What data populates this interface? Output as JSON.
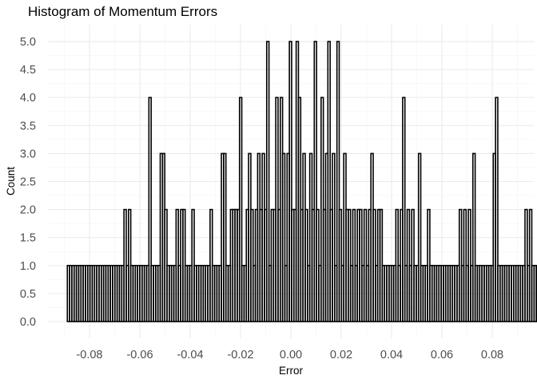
{
  "chart_data": {
    "type": "bar",
    "title": "Histogram of Momentum Errors",
    "xlabel": "Error",
    "ylabel": "Count",
    "xlim": [
      -0.0965,
      0.0965
    ],
    "ylim": [
      -0.3,
      5.3
    ],
    "x_ticks": [
      -0.08,
      -0.06,
      -0.04,
      -0.02,
      0.0,
      0.02,
      0.04,
      0.06,
      0.08
    ],
    "x_tick_labels": [
      "-0.08",
      "-0.06",
      "-0.04",
      "-0.02",
      "0.00",
      "0.02",
      "0.04",
      "0.06",
      "0.08"
    ],
    "y_ticks": [
      0,
      0.5,
      1,
      1.5,
      2,
      2.5,
      3,
      3.5,
      4,
      4.5,
      5
    ],
    "y_tick_labels": [
      "0.0",
      "0.5",
      "1.0",
      "1.5",
      "2.0",
      "2.5",
      "3.0",
      "3.5",
      "4.0",
      "4.5",
      "5.0"
    ],
    "grid": true,
    "bin_start": -0.0888,
    "bin_width": 0.0009,
    "counts": [
      1,
      1,
      1,
      1,
      1,
      1,
      1,
      1,
      1,
      1,
      1,
      1,
      1,
      1,
      1,
      1,
      1,
      1,
      1,
      1,
      1,
      1,
      1,
      1,
      1,
      2,
      1,
      2,
      1,
      1,
      1,
      1,
      1,
      1,
      1,
      1,
      4,
      1,
      1,
      1,
      1,
      3,
      3,
      2,
      1,
      1,
      1,
      1,
      2,
      1,
      2,
      2,
      1,
      1,
      1,
      2,
      1,
      1,
      1,
      1,
      1,
      1,
      1,
      2,
      1,
      1,
      1,
      1,
      3,
      3,
      1,
      1,
      2,
      2,
      2,
      2,
      4,
      1,
      1,
      2,
      3,
      2,
      1,
      2,
      3,
      2,
      3,
      2,
      5,
      1,
      2,
      2,
      4,
      2,
      4,
      3,
      1,
      3,
      5,
      2,
      2,
      5,
      4,
      2,
      3,
      2,
      1,
      3,
      2,
      5,
      2,
      1,
      4,
      2,
      3,
      5,
      2,
      3,
      1,
      5,
      2,
      1,
      3,
      2,
      2,
      1,
      2,
      1,
      2,
      2,
      1,
      2,
      1,
      2,
      3,
      2,
      1,
      2,
      2,
      1,
      1,
      1,
      1,
      1,
      1,
      2,
      1,
      2,
      4,
      1,
      2,
      1,
      2,
      1,
      1,
      3,
      1,
      1,
      1,
      2,
      1,
      1,
      1,
      1,
      1,
      1,
      1,
      1,
      1,
      1,
      1,
      1,
      1,
      2,
      1,
      2,
      1,
      2,
      1,
      3,
      1,
      1,
      1,
      1,
      1,
      1,
      1,
      1,
      3,
      4,
      1,
      1,
      1,
      1,
      1,
      1,
      1,
      1,
      1,
      1,
      1,
      1,
      2,
      1,
      2,
      1,
      1,
      1,
      1,
      1,
      1,
      1,
      1,
      1,
      1,
      1,
      1,
      1,
      1,
      1,
      1,
      1,
      1,
      1,
      1,
      1,
      1,
      1,
      1
    ]
  }
}
